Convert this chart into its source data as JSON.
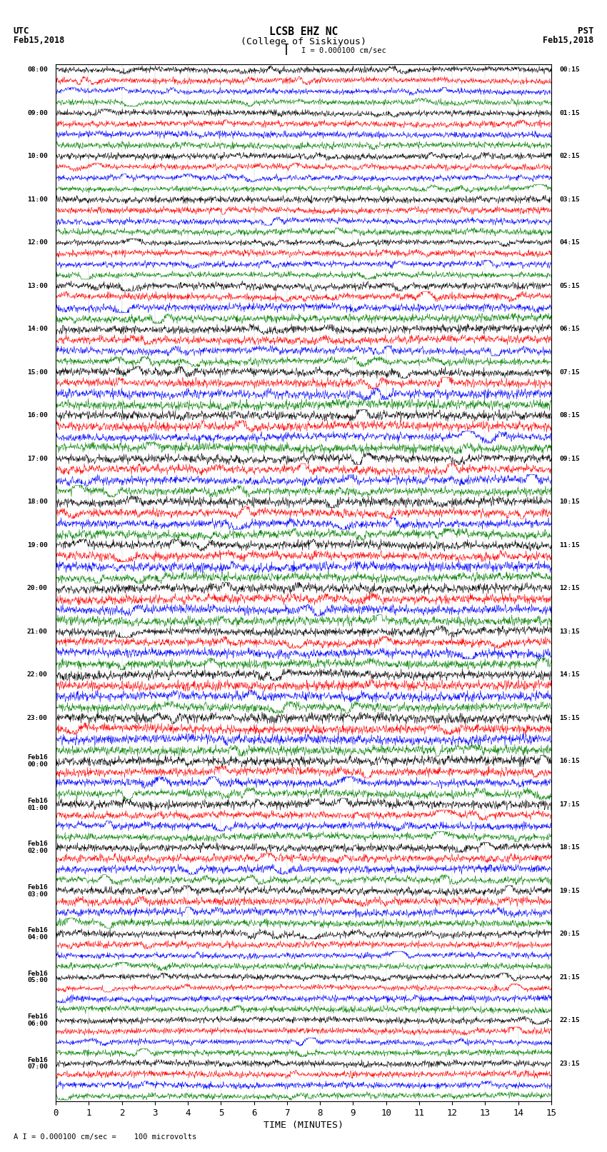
{
  "title_line1": "LCSB EHZ NC",
  "title_line2": "(College of Siskiyous)",
  "left_label_top": "UTC",
  "left_label_date": "Feb15,2018",
  "right_label_top": "PST",
  "right_label_date": "Feb15,2018",
  "scale_text": "I = 0.000100 cm/sec",
  "bottom_text": "A I = 0.000100 cm/sec =    100 microvolts",
  "xlabel": "TIME (MINUTES)",
  "xticks": [
    0,
    1,
    2,
    3,
    4,
    5,
    6,
    7,
    8,
    9,
    10,
    11,
    12,
    13,
    14,
    15
  ],
  "colors": [
    "black",
    "red",
    "blue",
    "green"
  ],
  "n_rows": 96,
  "background_color": "#ffffff",
  "noise_seed": 42,
  "figwidth": 8.5,
  "figheight": 16.13,
  "dpi": 100
}
